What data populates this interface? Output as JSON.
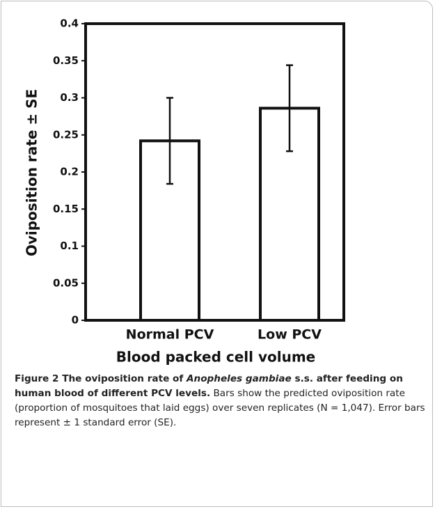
{
  "chart_data": {
    "type": "bar",
    "categories": [
      "Normal PCV",
      "Low PCV"
    ],
    "values": [
      0.242,
      0.286
    ],
    "errors": [
      0.058,
      0.058
    ],
    "color": "#ffffff",
    "edge_color": "#111111",
    "x_label": "Blood packed cell volume",
    "y_label": "Oviposition rate ± SE",
    "ylim": [
      0,
      0.4
    ],
    "yticks": [
      0,
      0.05,
      0.1,
      0.15,
      0.2,
      0.25,
      0.3,
      0.35,
      0.4
    ],
    "grid": false,
    "caption": [
      {
        "text": "Figure 2 The oviposition rate of ",
        "style": "bold"
      },
      {
        "text": "Anopheles gambiae",
        "style": "bold-italic"
      },
      {
        "text": " s.s. after feeding on human blood of different PCV levels.",
        "style": "bold"
      },
      {
        "text": " Bars show the predicted oviposition rate (proportion of mosquitoes that laid eggs) over seven replicates (N = 1,047). Error bars represent ± 1 standard error (SE).",
        "style": "normal"
      }
    ]
  }
}
